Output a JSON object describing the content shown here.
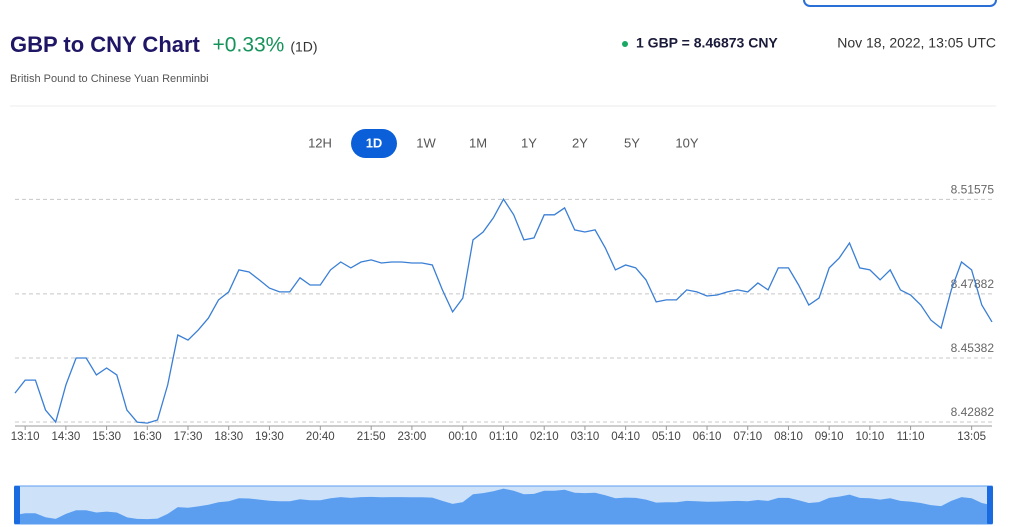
{
  "header": {
    "title": "GBP to CNY Chart",
    "change": "+0.33%",
    "period": "(1D)",
    "subtitle": "British Pound to Chinese Yuan Renminbi",
    "rate": "1 GBP = 8.46873 CNY",
    "timestamp": "Nov 18, 2022, 13:05 UTC"
  },
  "ranges": {
    "options": [
      "12H",
      "1D",
      "1W",
      "1M",
      "1Y",
      "2Y",
      "5Y",
      "10Y"
    ],
    "active_index": 1
  },
  "chart_data": {
    "type": "line",
    "categories": [
      null,
      "13:10",
      null,
      null,
      null,
      "14:30",
      null,
      null,
      null,
      "15:30",
      null,
      null,
      null,
      "16:30",
      null,
      null,
      null,
      "17:30",
      null,
      null,
      null,
      "18:30",
      null,
      null,
      null,
      "19:30",
      null,
      null,
      null,
      null,
      "20:40",
      null,
      null,
      null,
      null,
      "21:50",
      null,
      null,
      null,
      "23:00",
      null,
      null,
      null,
      null,
      "00:10",
      null,
      null,
      null,
      "01:10",
      null,
      null,
      null,
      "02:10",
      null,
      null,
      null,
      "03:10",
      null,
      null,
      null,
      "04:10",
      null,
      null,
      null,
      "05:10",
      null,
      null,
      null,
      "06:10",
      null,
      null,
      null,
      "07:10",
      null,
      null,
      null,
      "08:10",
      null,
      null,
      null,
      "09:10",
      null,
      null,
      null,
      "10:10",
      null,
      null,
      null,
      "11:10",
      null,
      null,
      null,
      null,
      null,
      "13:05",
      null,
      null
    ],
    "series": [
      {
        "name": "GBP/CNY",
        "color": "#3a7fd5",
        "values": [
          8.4401,
          8.4452,
          8.4452,
          8.4335,
          8.4288,
          8.4433,
          8.4538,
          8.4538,
          8.4472,
          8.4499,
          8.4472,
          8.4335,
          8.4288,
          8.4284,
          8.4296,
          8.4433,
          8.4628,
          8.4608,
          8.4647,
          8.4694,
          8.4765,
          8.4796,
          8.4882,
          8.4874,
          8.4843,
          8.4811,
          8.4796,
          8.4796,
          8.4851,
          8.4823,
          8.4823,
          8.4882,
          8.4913,
          8.489,
          8.4913,
          8.4921,
          8.4909,
          8.4913,
          8.4913,
          8.4909,
          8.4909,
          8.4901,
          8.4804,
          8.4718,
          8.4772,
          8.4999,
          8.503,
          8.5085,
          8.5158,
          8.5097,
          8.4999,
          8.5007,
          8.5097,
          8.5097,
          8.5124,
          8.5038,
          8.503,
          8.5038,
          8.4968,
          8.4882,
          8.4901,
          8.489,
          8.4843,
          8.4757,
          8.4765,
          8.4765,
          8.4804,
          8.4796,
          8.478,
          8.4784,
          8.4796,
          8.4804,
          8.4796,
          8.4831,
          8.4804,
          8.489,
          8.489,
          8.4823,
          8.4745,
          8.4772,
          8.489,
          8.4929,
          8.4987,
          8.489,
          8.4882,
          8.4843,
          8.4882,
          8.4804,
          8.4784,
          8.4745,
          8.4686,
          8.4655,
          8.4804,
          8.4913,
          8.4882,
          8.4745,
          8.4679
        ]
      }
    ],
    "ylim": [
      8.4257,
      8.5233
    ],
    "yticks": [
      8.42882,
      8.45382,
      8.47882,
      8.51575
    ],
    "grid": true,
    "navigator_color": "#5b9ef0"
  }
}
